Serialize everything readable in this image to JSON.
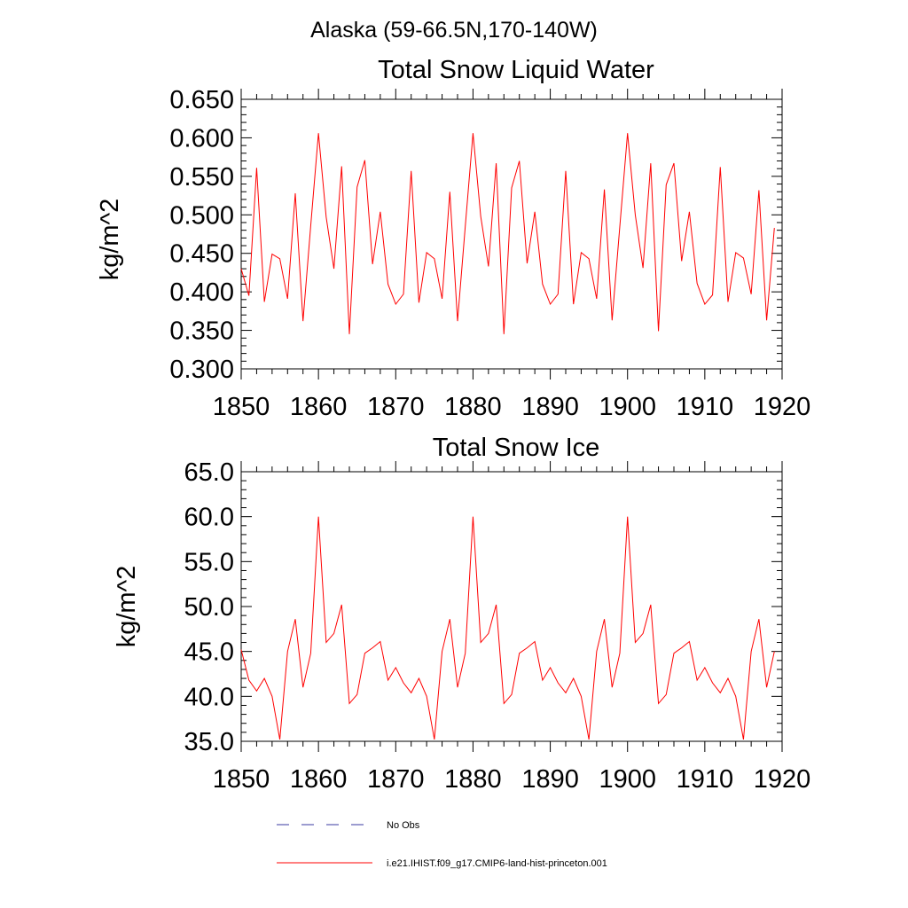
{
  "figure": {
    "title": "Alaska (59-66.5N,170-140W)"
  },
  "legend": {
    "items": [
      {
        "label": "No Obs",
        "color": "#3a3aa0",
        "style": "dashed"
      },
      {
        "label": "i.e21.IHIST.f09_g17.CMIP6-land-hist-princeton.001",
        "color": "#ff0000",
        "style": "solid"
      }
    ]
  },
  "chart_data": [
    {
      "type": "line",
      "title": "Total Snow Liquid Water",
      "xlabel": "",
      "ylabel": "kg/m^2",
      "xlim": [
        1850,
        1920
      ],
      "ylim": [
        0.3,
        0.65
      ],
      "x_ticks": [
        "1850",
        "1860",
        "1870",
        "1880",
        "1890",
        "1900",
        "1910",
        "1920"
      ],
      "y_ticks": [
        "0.300",
        "0.350",
        "0.400",
        "0.450",
        "0.500",
        "0.550",
        "0.600",
        "0.650"
      ],
      "grid": false,
      "series": [
        {
          "color": "#ff0000",
          "x": [
            1850,
            1851,
            1852,
            1853,
            1854,
            1855,
            1856,
            1857,
            1858,
            1859,
            1860,
            1861,
            1862,
            1863,
            1864,
            1865,
            1866,
            1867,
            1868,
            1869,
            1870,
            1871,
            1872,
            1873,
            1874,
            1875,
            1876,
            1877,
            1878,
            1879,
            1880,
            1881,
            1882,
            1883,
            1884,
            1885,
            1886,
            1887,
            1888,
            1889,
            1890,
            1891,
            1892,
            1893,
            1894,
            1895,
            1896,
            1897,
            1898,
            1899,
            1900,
            1901,
            1902,
            1903,
            1904,
            1905,
            1906,
            1907,
            1908,
            1909,
            1910,
            1911,
            1912,
            1913,
            1914,
            1915,
            1916,
            1917,
            1918,
            1919
          ],
          "values": [
            0.43,
            0.395,
            0.561,
            0.387,
            0.449,
            0.443,
            0.391,
            0.528,
            0.362,
            0.486,
            0.606,
            0.497,
            0.43,
            0.563,
            0.345,
            0.536,
            0.571,
            0.436,
            0.504,
            0.41,
            0.384,
            0.397,
            0.557,
            0.386,
            0.451,
            0.443,
            0.391,
            0.53,
            0.362,
            0.485,
            0.606,
            0.498,
            0.433,
            0.567,
            0.345,
            0.535,
            0.57,
            0.437,
            0.504,
            0.41,
            0.384,
            0.397,
            0.557,
            0.384,
            0.451,
            0.443,
            0.391,
            0.533,
            0.363,
            0.485,
            0.606,
            0.5,
            0.431,
            0.567,
            0.349,
            0.539,
            0.567,
            0.44,
            0.504,
            0.411,
            0.384,
            0.396,
            0.562,
            0.387,
            0.451,
            0.444,
            0.397,
            0.532,
            0.363,
            0.483
          ]
        }
      ]
    },
    {
      "type": "line",
      "title": "Total Snow Ice",
      "xlabel": "",
      "ylabel": "kg/m^2",
      "xlim": [
        1850,
        1920
      ],
      "ylim": [
        35.0,
        65.0
      ],
      "x_ticks": [
        "1850",
        "1860",
        "1870",
        "1880",
        "1890",
        "1900",
        "1910",
        "1920"
      ],
      "y_ticks": [
        "35.0",
        "40.0",
        "45.0",
        "50.0",
        "55.0",
        "60.0",
        "65.0"
      ],
      "grid": false,
      "series": [
        {
          "color": "#ff0000",
          "x": [
            1850,
            1851,
            1852,
            1853,
            1854,
            1855,
            1856,
            1857,
            1858,
            1859,
            1860,
            1861,
            1862,
            1863,
            1864,
            1865,
            1866,
            1867,
            1868,
            1869,
            1870,
            1871,
            1872,
            1873,
            1874,
            1875,
            1876,
            1877,
            1878,
            1879,
            1880,
            1881,
            1882,
            1883,
            1884,
            1885,
            1886,
            1887,
            1888,
            1889,
            1890,
            1891,
            1892,
            1893,
            1894,
            1895,
            1896,
            1897,
            1898,
            1899,
            1900,
            1901,
            1902,
            1903,
            1904,
            1905,
            1906,
            1907,
            1908,
            1909,
            1910,
            1911,
            1912,
            1913,
            1914,
            1915,
            1916,
            1917,
            1918,
            1919
          ],
          "values": [
            45.2,
            41.8,
            40.6,
            42.0,
            40.0,
            35.2,
            45.0,
            48.6,
            41.0,
            44.8,
            60.0,
            46.0,
            47.0,
            50.2,
            39.2,
            40.2,
            44.8,
            45.4,
            46.1,
            41.8,
            43.2,
            41.5,
            40.4,
            42.0,
            40.0,
            35.2,
            45.0,
            48.6,
            41.0,
            44.8,
            60.0,
            46.0,
            47.0,
            50.2,
            39.2,
            40.2,
            44.8,
            45.4,
            46.1,
            41.8,
            43.2,
            41.5,
            40.4,
            42.0,
            40.0,
            35.2,
            45.0,
            48.6,
            41.0,
            44.8,
            60.0,
            46.0,
            47.0,
            50.2,
            39.2,
            40.2,
            44.8,
            45.4,
            46.1,
            41.8,
            43.2,
            41.5,
            40.4,
            42.0,
            40.0,
            35.2,
            45.0,
            48.6,
            41.0,
            45.0
          ]
        }
      ]
    }
  ]
}
